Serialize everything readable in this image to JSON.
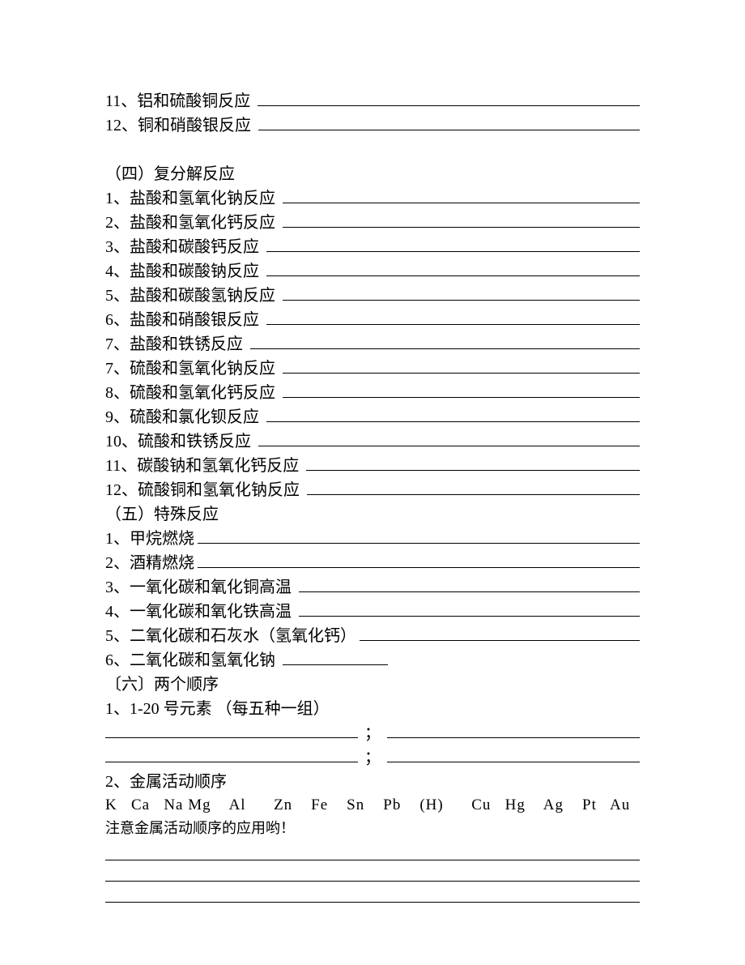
{
  "top": {
    "items": [
      {
        "num": "11、",
        "text": "铝和硫酸铜反应"
      },
      {
        "num": "12、",
        "text": "铜和硝酸银反应"
      }
    ]
  },
  "section4": {
    "heading": "（四）复分解反应",
    "items": [
      {
        "num": "1、",
        "text": "盐酸和氢氧化钠反应"
      },
      {
        "num": "2、",
        "text": "盐酸和氢氧化钙反应"
      },
      {
        "num": "3、",
        "text": "盐酸和碳酸钙反应"
      },
      {
        "num": "4、",
        "text": "盐酸和碳酸钠反应"
      },
      {
        "num": "5、",
        "text": "盐酸和碳酸氢钠反应"
      },
      {
        "num": "6、",
        "text": "盐酸和硝酸银反应"
      },
      {
        "num": "7、",
        "text": "盐酸和铁锈反应"
      },
      {
        "num": "7、",
        "text": "硫酸和氢氧化钠反应"
      },
      {
        "num": "8、",
        "text": "硫酸和氢氧化钙反应"
      },
      {
        "num": "9、",
        "text": "硫酸和氯化钡反应"
      },
      {
        "num": "10、",
        "text": "硫酸和铁锈反应"
      },
      {
        "num": "11、",
        "text": "碳酸钠和氢氧化钙反应"
      },
      {
        "num": "12、",
        "text": "硫酸铜和氢氧化钠反应"
      }
    ]
  },
  "section5": {
    "heading": "（五）特殊反应",
    "items": [
      {
        "num": "1、",
        "text": "甲烷燃烧",
        "full": true
      },
      {
        "num": "2、",
        "text": "酒精燃烧",
        "full": true
      },
      {
        "num": "3、",
        "text": "一氧化碳和氧化铜高温",
        "full": true
      },
      {
        "num": "4、",
        "text": "一氧化碳和氧化铁高温",
        "full": true
      },
      {
        "num": "5、",
        "text": "二氧化碳和石灰水（氢氧化钙）",
        "full": true
      },
      {
        "num": "6、",
        "text": "二氧化碳和氢氧化钠",
        "full": false
      }
    ]
  },
  "section6": {
    "heading": "〔六〕两个顺序",
    "item1_label": "1、1-20 号元素 （每五种一组）",
    "item2_label": "2、金属活动顺序",
    "metals": "K   Ca   Na Mg    Al      Zn    Fe    Sn    Pb    (H)      Cu   Hg    Ag    Pt   Au",
    "note": "注意金属活动顺序的应用哟！"
  }
}
